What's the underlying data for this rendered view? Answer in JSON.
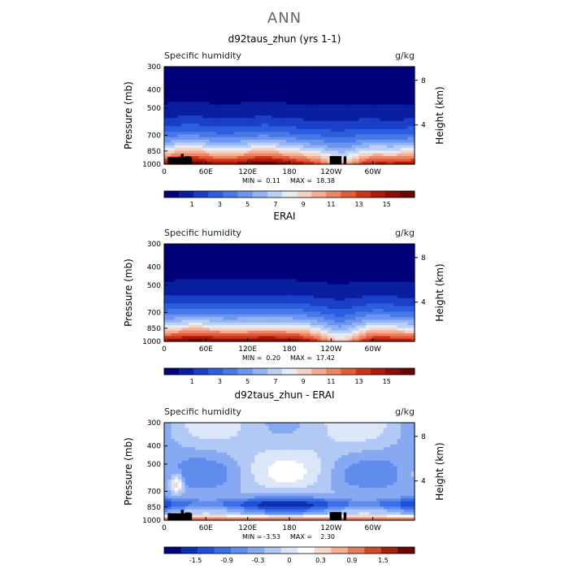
{
  "page": {
    "title": "ANN"
  },
  "colors": {
    "topography": "#000000",
    "seq_scale": [
      "#00007a",
      "#0a1ea0",
      "#1a3fc8",
      "#2c5fe0",
      "#4678e8",
      "#6b95ee",
      "#93b2f2",
      "#bcd0f6",
      "#e6ecf6",
      "#f7d2c2",
      "#f4ad95",
      "#ee8464",
      "#e35c3a",
      "#cf3418",
      "#b01a08",
      "#8a0f02",
      "#6a0600"
    ],
    "div_scale": [
      "#00007a",
      "#0d2fb0",
      "#2050d8",
      "#3a6fe6",
      "#5f8ded",
      "#87a9f1",
      "#b2c8f5",
      "#dbe6f8",
      "#ffffff",
      "#fbd9c9",
      "#f3ad92",
      "#e57c5b",
      "#cf4a2a",
      "#a3200c",
      "#6a0600"
    ]
  },
  "chart_data": [
    {
      "type": "heatmap",
      "title": "d92taus_zhun (yrs 1-1)",
      "left_label": "Specific humidity",
      "right_label": "g/kg",
      "ylabel": "Pressure (mb)",
      "y2label": "Height (km)",
      "x_ticks": [
        "0",
        "60E",
        "120E",
        "180",
        "120W",
        "60W"
      ],
      "x_tick_lon": [
        0,
        60,
        120,
        180,
        240,
        300
      ],
      "xlim": [
        0,
        360
      ],
      "y_ticks": [
        "300",
        "400",
        "500",
        "700",
        "850",
        "1000"
      ],
      "y_tick_p": [
        300,
        400,
        500,
        700,
        850,
        1000
      ],
      "ylim": [
        1000,
        300
      ],
      "y2_ticks": [
        "8",
        "4"
      ],
      "y2_tick_p": [
        355,
        616
      ],
      "stats": {
        "min_label": "MIN =",
        "min": "0.11",
        "max_label": "MAX =",
        "max": "18.38"
      },
      "colorbar_ticks": [
        "1",
        "3",
        "5",
        "7",
        "9",
        "11",
        "13",
        "15"
      ],
      "colorbar_range": [
        0,
        16
      ],
      "scale": "seq",
      "field": "model"
    },
    {
      "type": "heatmap",
      "title": "ERAI",
      "left_label": "Specific humidity",
      "right_label": "g/kg",
      "ylabel": "Pressure (mb)",
      "y2label": "Height (km)",
      "x_ticks": [
        "0",
        "60E",
        "120E",
        "180",
        "120W",
        "60W"
      ],
      "x_tick_lon": [
        0,
        60,
        120,
        180,
        240,
        300
      ],
      "xlim": [
        0,
        360
      ],
      "y_ticks": [
        "300",
        "400",
        "500",
        "700",
        "850",
        "1000"
      ],
      "y_tick_p": [
        300,
        400,
        500,
        700,
        850,
        1000
      ],
      "ylim": [
        1000,
        300
      ],
      "y2_ticks": [
        "8",
        "4"
      ],
      "y2_tick_p": [
        355,
        616
      ],
      "stats": {
        "min_label": "MIN =",
        "min": "0.20",
        "max_label": "MAX =",
        "max": "17.42"
      },
      "colorbar_ticks": [
        "1",
        "3",
        "5",
        "7",
        "9",
        "11",
        "13",
        "15"
      ],
      "colorbar_range": [
        0,
        16
      ],
      "scale": "seq",
      "field": "obs"
    },
    {
      "type": "heatmap",
      "title": "d92taus_zhun - ERAI",
      "left_label": "Specific humidity",
      "right_label": "g/kg",
      "ylabel": "Pressure (mb)",
      "y2label": "Height (km)",
      "x_ticks": [
        "0",
        "60E",
        "120E",
        "180",
        "120W",
        "60W"
      ],
      "x_tick_lon": [
        0,
        60,
        120,
        180,
        240,
        300
      ],
      "xlim": [
        0,
        360
      ],
      "y_ticks": [
        "300",
        "400",
        "500",
        "700",
        "850",
        "1000"
      ],
      "y_tick_p": [
        300,
        400,
        500,
        700,
        850,
        1000
      ],
      "ylim": [
        1000,
        300
      ],
      "y2_ticks": [
        "8",
        "4"
      ],
      "y2_tick_p": [
        355,
        616
      ],
      "stats": {
        "min_label": "MIN =",
        "min": "-3.53",
        "max_label": "MAX =",
        "max": "2.30"
      },
      "colorbar_ticks": [
        "-1.5",
        "-0.9",
        "-0.3",
        "0",
        "0.3",
        "0.9",
        "1.5"
      ],
      "colorbar_range": [
        -2.1,
        2.1
      ],
      "scale": "div",
      "field": "diff"
    }
  ]
}
